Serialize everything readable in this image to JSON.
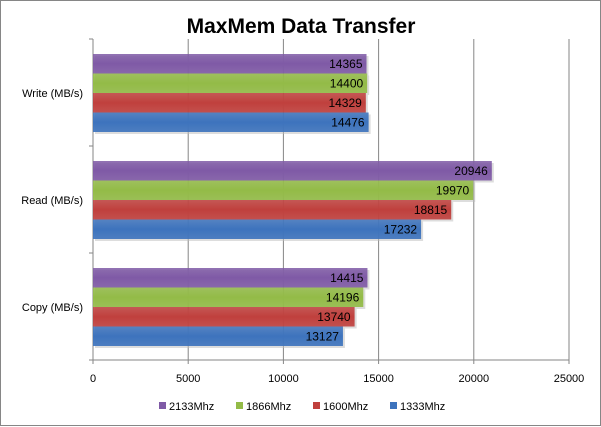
{
  "chart_data": {
    "type": "bar",
    "orientation": "horizontal",
    "title": "MaxMem Data Transfer",
    "categories": [
      "Write (MB/s)",
      "Read (MB/s)",
      "Copy (MB/s)"
    ],
    "series": [
      {
        "name": "2133Mhz",
        "color": "#7f5aa6",
        "values": [
          14365,
          20946,
          14415
        ]
      },
      {
        "name": "1866Mhz",
        "color": "#93bb47",
        "values": [
          14400,
          19970,
          14196
        ]
      },
      {
        "name": "1600Mhz",
        "color": "#c0403d",
        "values": [
          14329,
          18815,
          13740
        ]
      },
      {
        "name": "1333Mhz",
        "color": "#3d73bd",
        "values": [
          14476,
          17232,
          13127
        ]
      }
    ],
    "xlim": [
      0,
      25000
    ],
    "xticks": [
      "0",
      "5000",
      "10000",
      "15000",
      "20000",
      "25000"
    ],
    "grid": true,
    "legend": "bottom"
  }
}
